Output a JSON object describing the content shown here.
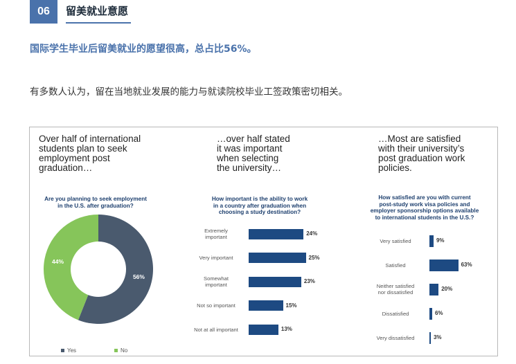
{
  "section": {
    "number": "06",
    "title": "留美就业意愿"
  },
  "highlight": "国际学生毕业后留美就业的愿望很高，总占比56%。",
  "body_text": "有多数人认为，留在当地就业发展的能力与就读院校毕业工签政策密切相关。",
  "columns": [
    {
      "heading": [
        "Over half of international",
        "students plan to seek",
        "employment post",
        "graduation…"
      ]
    },
    {
      "heading": [
        "…over half stated",
        "it was important",
        "when selecting",
        "the university…"
      ]
    },
    {
      "heading": [
        "…Most are satisfied",
        "with their university’s",
        "post graduation work",
        "policies."
      ]
    }
  ],
  "colors": {
    "navy": "#4a5a6e",
    "green": "#86c55a",
    "bar": "#1d4a82",
    "accent": "#4a72ab"
  },
  "chart_data": [
    {
      "type": "pie",
      "title": [
        "Are you planning to seek employment",
        "in the U.S. after graduation?"
      ],
      "categories": [
        "Yes",
        "No"
      ],
      "values": [
        56,
        44
      ],
      "value_labels": [
        "56%",
        "44%"
      ],
      "legend_position": "bottom-left"
    },
    {
      "type": "bar",
      "orientation": "horizontal",
      "title": [
        "How important is the ability to work",
        "in a country after graduation when",
        "choosing a study destination?"
      ],
      "categories": [
        [
          "Extremely",
          "important"
        ],
        [
          "Very important"
        ],
        [
          "Somewhat",
          "important"
        ],
        [
          "Not so important"
        ],
        [
          "Not at all important"
        ]
      ],
      "values": [
        24,
        25,
        23,
        15,
        13
      ],
      "value_labels": [
        "24%",
        "25%",
        "23%",
        "15%",
        "13%"
      ]
    },
    {
      "type": "bar",
      "orientation": "horizontal",
      "title": [
        "How satisfied are you with current",
        "post-study work visa policies and",
        "employer sponsorship options available",
        "to international students in the U.S.?"
      ],
      "categories": [
        [
          "Very satisfied"
        ],
        [
          "Satisfied"
        ],
        [
          "Neither satisfied",
          "nor dissatisfied"
        ],
        [
          "Dissatisfied"
        ],
        [
          "Very dissatisfied"
        ]
      ],
      "values": [
        9,
        63,
        20,
        6,
        3
      ],
      "value_labels": [
        "9%",
        "63%",
        "20%",
        "6%",
        "3%"
      ]
    }
  ]
}
